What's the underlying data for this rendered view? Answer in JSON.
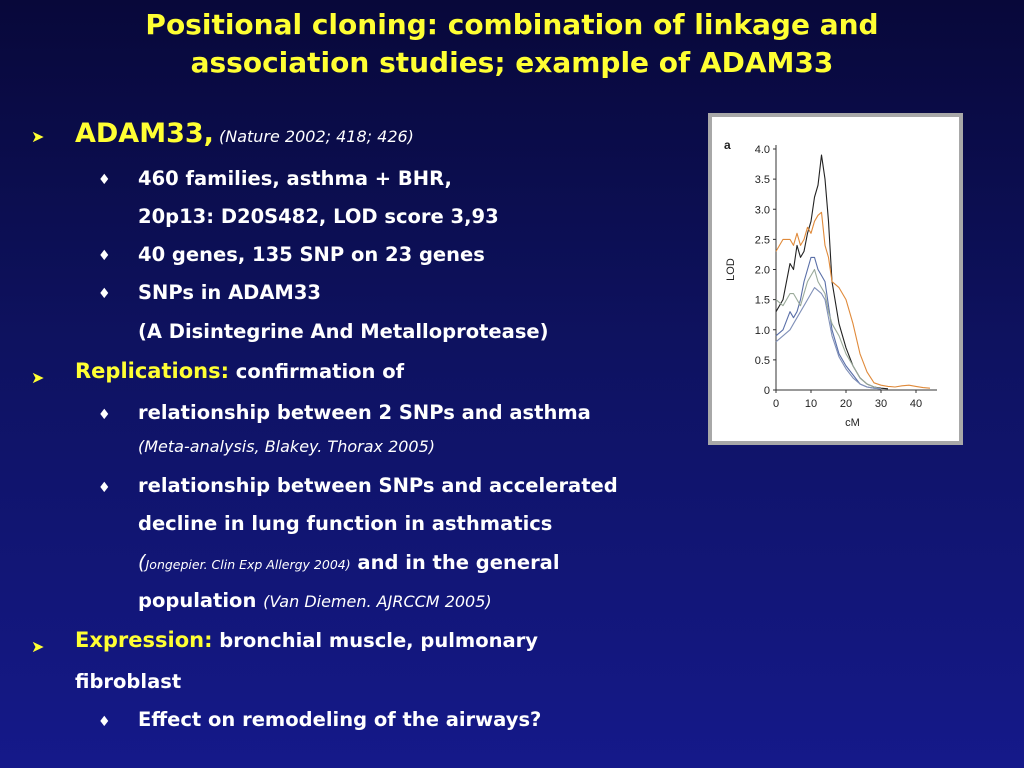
{
  "title": {
    "line1": "Positional cloning: combination of linkage and",
    "line2": "association studies; example of ADAM33"
  },
  "bullets": {
    "adam33_label": "ADAM33,",
    "adam33_ref_open": " (",
    "adam33_ref": "Nature 2002; 418; 426)",
    "families_line1": "460 families, asthma + BHR,",
    "families_line2": "20p13: D20S482, LOD score 3,93",
    "genes": "40 genes, 135 SNP on 23 genes",
    "snps_line1": "SNPs in ADAM33",
    "snps_line2": "(A Disintegrine And Metalloprotease)",
    "replications_label": "Replications:",
    "replications_text": " confirmation of",
    "rel1": "relationship between 2 SNPs and asthma",
    "rel1_ref": "(Meta-analysis, Blakey. Thorax 2005)",
    "rel2_line1": "relationship between SNPs and accelerated",
    "rel2_line2": "decline in lung function in asthmatics",
    "rel2_ref_open": "(",
    "rel2_ref": "Jongepier. Clin Exp Allergy 2004)",
    "rel2_line3_rest": " and in the general",
    "rel2_line4": "population",
    "rel2_ref2": "(Van Diemen. AJRCCM 2005)",
    "expression_label": "Expression:",
    "expression_text": " bronchial muscle, pulmonary",
    "expression_line2": "fibroblast",
    "effect": "Effect on remodeling of the airways?"
  },
  "chart_data": {
    "type": "line",
    "panel_label": "a",
    "xlabel": "cM",
    "ylabel": "LOD",
    "xlim": [
      0,
      46
    ],
    "ylim": [
      0,
      4.0
    ],
    "xticks": [
      0,
      10,
      20,
      30,
      40
    ],
    "yticks": [
      0,
      0.5,
      1.0,
      1.5,
      2.0,
      2.5,
      3.0,
      3.5,
      4.0
    ],
    "ytick_labels": [
      "0",
      "0.5",
      "1.0",
      "1.5",
      "2.0",
      "2.5",
      "3.0",
      "3.5",
      "4.0"
    ],
    "grid": false,
    "series": [
      {
        "color": "#222222",
        "x": [
          0,
          2,
          4,
          5,
          6,
          7,
          8,
          9,
          10,
          11,
          12,
          13,
          14,
          15,
          16,
          18,
          20,
          22,
          24,
          26,
          28,
          30,
          32
        ],
        "y": [
          1.3,
          1.5,
          2.1,
          2.0,
          2.4,
          2.2,
          2.3,
          2.6,
          2.8,
          3.2,
          3.4,
          3.9,
          3.5,
          2.8,
          1.8,
          1.1,
          0.7,
          0.4,
          0.2,
          0.1,
          0.05,
          0.03,
          0.02
        ]
      },
      {
        "color": "#e08a3a",
        "x": [
          0,
          2,
          4,
          5,
          6,
          7,
          8,
          9,
          10,
          11,
          12,
          13,
          14,
          15,
          16,
          18,
          20,
          22,
          24,
          26,
          28,
          30,
          32,
          34,
          36,
          38,
          40,
          42,
          44
        ],
        "y": [
          2.3,
          2.5,
          2.5,
          2.4,
          2.6,
          2.4,
          2.5,
          2.7,
          2.6,
          2.8,
          2.9,
          2.95,
          2.4,
          2.2,
          1.8,
          1.7,
          1.5,
          1.1,
          0.6,
          0.3,
          0.12,
          0.08,
          0.06,
          0.05,
          0.07,
          0.08,
          0.06,
          0.04,
          0.03
        ]
      },
      {
        "color": "#5a6fa8",
        "x": [
          0,
          2,
          4,
          5,
          6,
          7,
          8,
          9,
          10,
          11,
          12,
          13,
          14,
          15,
          16,
          18,
          20,
          22,
          24,
          26,
          28,
          30
        ],
        "y": [
          0.9,
          1.0,
          1.3,
          1.2,
          1.3,
          1.5,
          1.8,
          2.0,
          2.2,
          2.2,
          2.0,
          1.9,
          1.8,
          1.4,
          1.0,
          0.6,
          0.4,
          0.25,
          0.1,
          0.05,
          0.03,
          0.02
        ]
      },
      {
        "color": "#9aaa9a",
        "x": [
          0,
          2,
          4,
          5,
          6,
          7,
          8,
          9,
          10,
          11,
          12,
          13,
          14,
          15,
          16,
          18,
          20,
          22,
          24,
          26,
          28,
          30
        ],
        "y": [
          1.5,
          1.4,
          1.6,
          1.6,
          1.5,
          1.4,
          1.6,
          1.8,
          1.9,
          2.0,
          1.8,
          1.7,
          1.6,
          1.3,
          1.1,
          0.9,
          0.6,
          0.4,
          0.2,
          0.1,
          0.05,
          0.02
        ]
      },
      {
        "color": "#8090b8",
        "x": [
          0,
          2,
          4,
          5,
          6,
          7,
          8,
          9,
          10,
          11,
          12,
          13,
          14,
          15,
          16,
          18,
          20,
          22,
          24,
          26,
          28,
          30
        ],
        "y": [
          0.8,
          0.9,
          1.0,
          1.1,
          1.2,
          1.3,
          1.4,
          1.5,
          1.6,
          1.7,
          1.65,
          1.6,
          1.5,
          1.2,
          0.9,
          0.55,
          0.35,
          0.2,
          0.1,
          0.05,
          0.03,
          0.02
        ]
      }
    ]
  }
}
